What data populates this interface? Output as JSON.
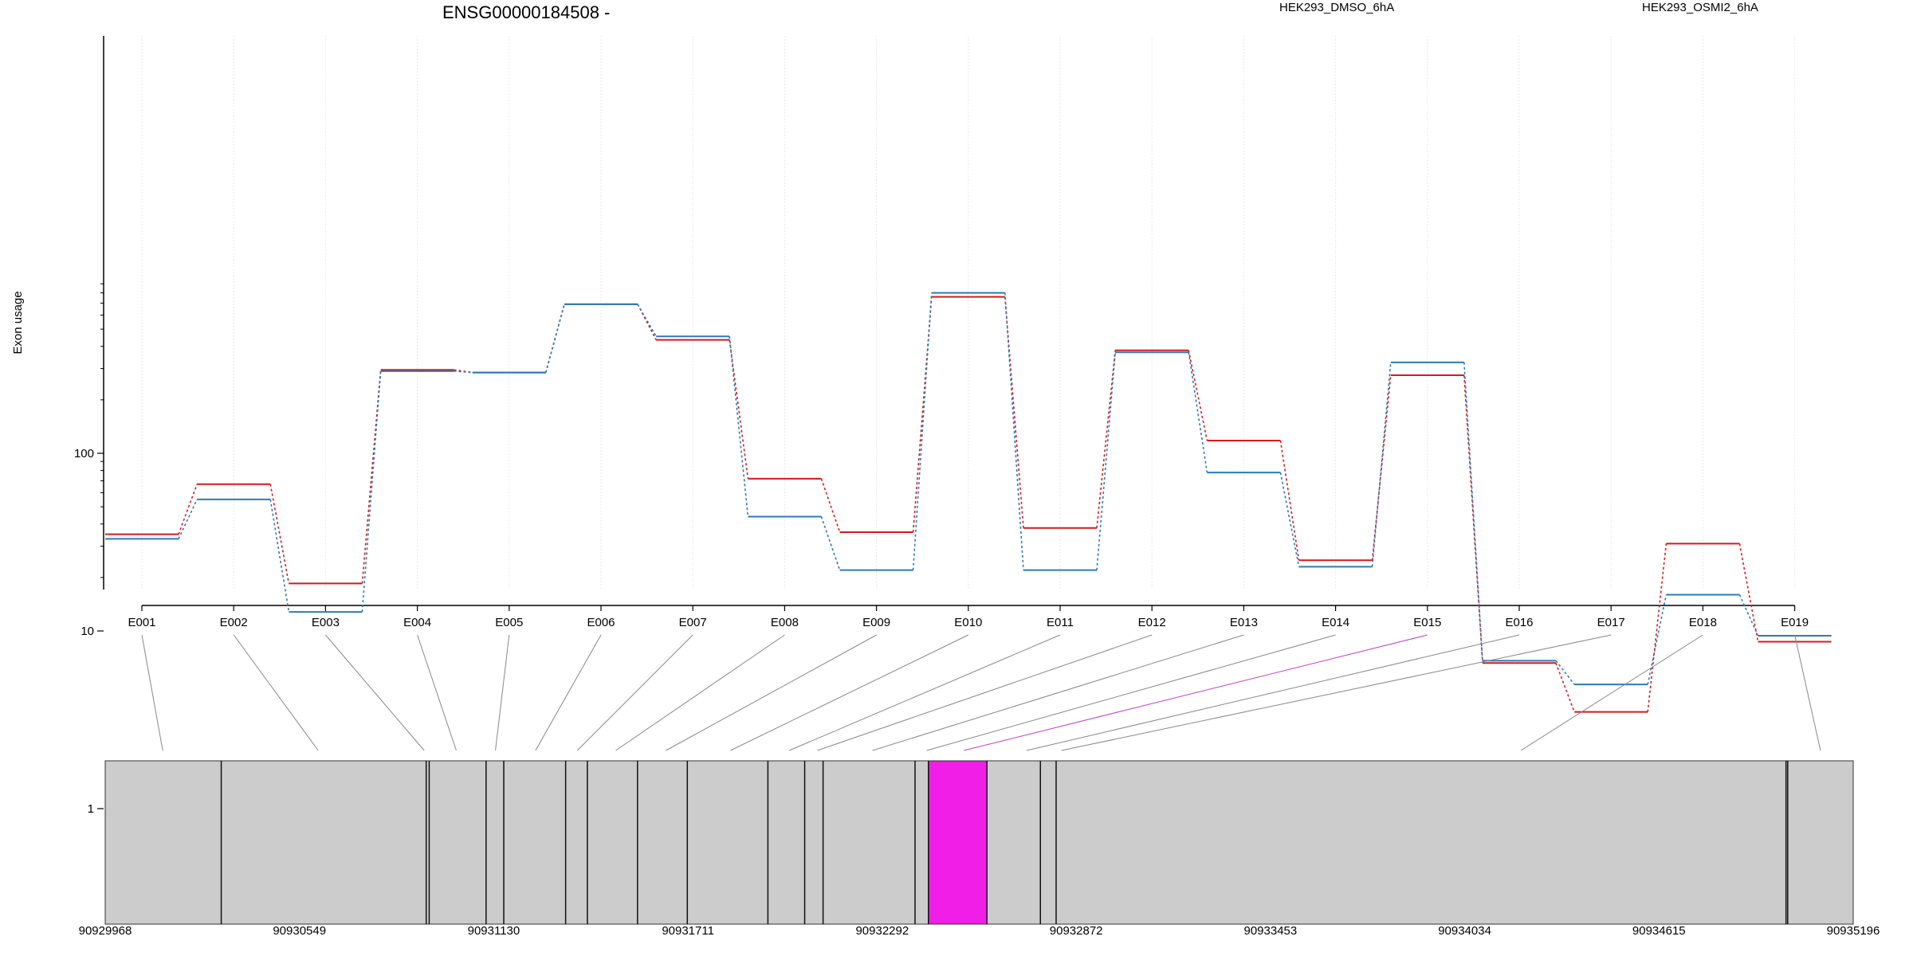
{
  "chart_data": {
    "type": "line",
    "title": "ENSG00000184508 -",
    "xlabel": "",
    "ylabel": "Exon usage",
    "yscale": "log",
    "ylim": [
      0.5,
      1000
    ],
    "y_ticks": [
      1,
      10,
      100
    ],
    "y_tick_labels": [
      "1",
      "10",
      "100"
    ],
    "grid": "vertical lines at exons",
    "legend_position": "top-right",
    "categories": [
      "E001",
      "E002",
      "E003",
      "E004",
      "E005",
      "E006",
      "E007",
      "E008",
      "E009",
      "E010",
      "E011",
      "E012",
      "E013",
      "E014",
      "E015",
      "E016",
      "E017",
      "E018",
      "E019"
    ],
    "series": [
      {
        "name": "HEK293_DMSO_6hA",
        "color": "#d7191c",
        "values": [
          35,
          67,
          18.5,
          295,
          285,
          690,
          435,
          72,
          36,
          760,
          38,
          380,
          118,
          25,
          275,
          6.6,
          3.5,
          31,
          8.7
        ]
      },
      {
        "name": "HEK293_OSMI2_6hA",
        "color": "#2c7bb6",
        "values": [
          33,
          55,
          12.8,
          290,
          285,
          690,
          455,
          44,
          22,
          800,
          22,
          370,
          78,
          23,
          325,
          6.8,
          5,
          16,
          9.4
        ]
      }
    ],
    "gene_model": {
      "coord_start": 90929968,
      "coord_end": 90935196,
      "coordinate_labels": [
        "90929968",
        "90930549",
        "90931130",
        "90931711",
        "90932292",
        "90932872",
        "90933453",
        "90934034",
        "90934615",
        "90935196"
      ],
      "coordinate_ticks": [
        90929968,
        90930549,
        90931130,
        90931711,
        90932292,
        90932872,
        90933453,
        90934034,
        90934615,
        90935196
      ],
      "exon_boundaries": [
        90930315,
        90930928,
        90930937,
        90931107,
        90931160,
        90931345,
        90931410,
        90931560,
        90931709,
        90931950,
        90932060,
        90932115,
        90932390,
        90932430,
        90932605,
        90932765,
        90932812,
        90934995,
        90935000
      ],
      "exon_link_positions": [
        90930140,
        90930605,
        90930922,
        90931018,
        90931135,
        90931255,
        90931380,
        90931495,
        90931645,
        90931838,
        90932014,
        90932098,
        90932263,
        90932425,
        90932536,
        90932724,
        90932828,
        90934202,
        90935098
      ],
      "highlighted_exon": "E015",
      "highlight_range": [
        90932430,
        90932605
      ],
      "highlight_color": "#f01ee6",
      "exon_fill_color": "#cccccc"
    }
  }
}
